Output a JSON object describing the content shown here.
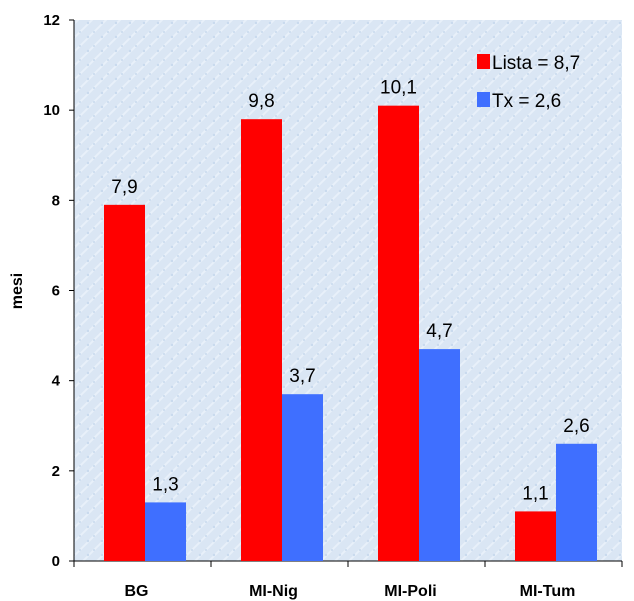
{
  "chart_data": {
    "type": "bar",
    "categories": [
      "BG",
      "MI-Nig",
      "MI-Poli",
      "MI-Tum"
    ],
    "series": [
      {
        "name": "Lista = 8,7",
        "values": [
          7.9,
          9.8,
          10.1,
          1.1
        ],
        "labels": [
          "7,9",
          "9,8",
          "10,1",
          "1,1"
        ],
        "color": "#ff0000"
      },
      {
        "name": "Tx = 2,6",
        "values": [
          1.3,
          3.7,
          4.7,
          2.6
        ],
        "labels": [
          "1,3",
          "3,7",
          "4,7",
          "2,6"
        ],
        "color": "#3f6fff"
      }
    ],
    "title": "",
    "xlabel": "",
    "ylabel": "mesi",
    "ylim": [
      0,
      12
    ],
    "yticks": [
      0,
      2,
      4,
      6,
      8,
      10,
      12
    ],
    "ytick_labels": [
      "0",
      "2",
      "4",
      "6",
      "8",
      "10",
      "12"
    ],
    "grid": false,
    "legend_position": "top-right",
    "plot_background": "#dce8f5"
  }
}
